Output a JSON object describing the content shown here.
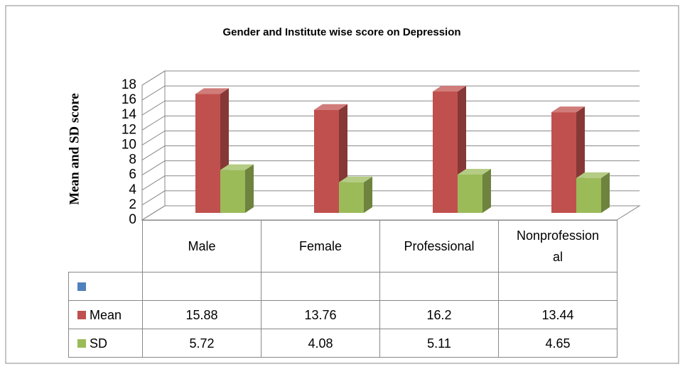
{
  "chart_data": {
    "type": "bar3d",
    "title": "Gender and Institute wise score on Depression",
    "y_label": "Mean and SD score",
    "categories": [
      "Male",
      "Female",
      "Professional",
      "Nonprofessional"
    ],
    "series": [
      {
        "name": null,
        "color": "#4f81bd",
        "values": [
          null,
          null,
          null,
          null
        ]
      },
      {
        "name": "Mean",
        "color": "#c0504d",
        "values": [
          15.88,
          13.76,
          16.2,
          13.44
        ]
      },
      {
        "name": "SD",
        "color": "#9bbb59",
        "values": [
          5.72,
          4.08,
          5.11,
          4.65
        ]
      }
    ],
    "ylim": [
      0,
      18
    ],
    "yticks": [
      0,
      2,
      4,
      6,
      8,
      10,
      12,
      14,
      16,
      18
    ],
    "grid": true,
    "data_table": true
  }
}
